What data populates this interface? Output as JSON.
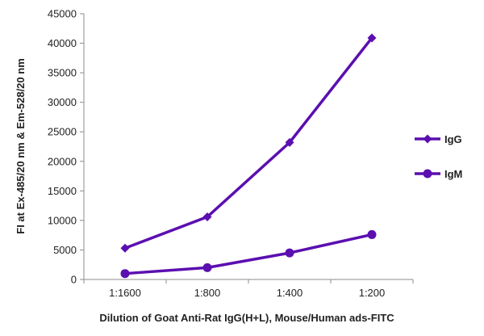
{
  "chart_data": {
    "type": "line",
    "title": "",
    "xlabel": "Dilution of Goat Anti-Rat IgG(H+L), Mouse/Human ads-FITC",
    "ylabel": "FI at Ex-485/20 nm & Em-528/20 nm",
    "categories": [
      "1:1600",
      "1:800",
      "1:400",
      "1:200"
    ],
    "ylim": [
      0,
      45000
    ],
    "yticks": [
      0,
      5000,
      10000,
      15000,
      20000,
      25000,
      30000,
      35000,
      40000,
      45000
    ],
    "grid": false,
    "legend_position": "right",
    "series": [
      {
        "name": "IgG",
        "marker": "diamond",
        "color": "#5b0fb0",
        "values": [
          5300,
          10600,
          23200,
          40900
        ]
      },
      {
        "name": "IgM",
        "marker": "circle",
        "color": "#5b0fb0",
        "values": [
          1000,
          2000,
          4500,
          7600
        ]
      }
    ]
  }
}
